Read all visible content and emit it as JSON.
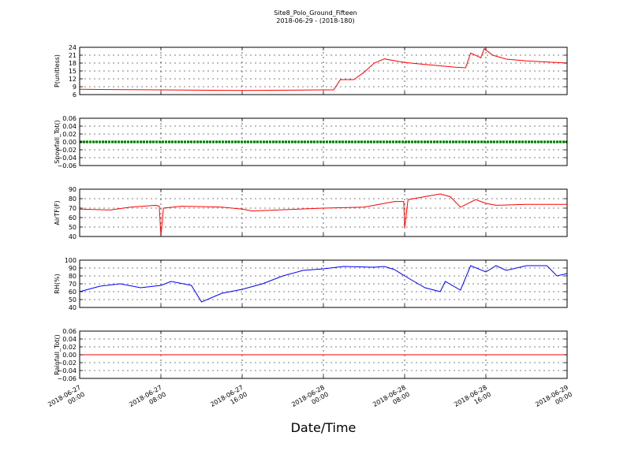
{
  "figure": {
    "title_line1": "Site8_Polo_Ground_Fifteen",
    "title_line2": "2018-06-29 - (2018-180)",
    "xlabel": "Date/Time"
  },
  "chart_data": [
    {
      "type": "line",
      "ylabel": "P(unitless)",
      "ylim": [
        6,
        24
      ],
      "yticks": [
        "24",
        "21",
        "18",
        "15",
        "12",
        "9",
        "6"
      ],
      "ytick_values": [
        24,
        21,
        18,
        15,
        12,
        9,
        6
      ],
      "xlim": [
        "2018-06-27 00:00",
        "2018-06-29 00:00"
      ],
      "xticks": [
        "2018-06-27 00:00",
        "2018-06-27 08:00",
        "2018-06-27 16:00",
        "2018-06-28 00:00",
        "2018-06-28 08:00",
        "2018-06-28 16:00",
        "2018-06-29 00:00"
      ],
      "grid": true,
      "series": [
        {
          "color": "#ff0000",
          "x": [
            "2018-06-27 00:00",
            "2018-06-27 08:00",
            "2018-06-27 16:00",
            "2018-06-28 00:00",
            "2018-06-28 01:00",
            "2018-06-28 01:40",
            "2018-06-28 03:00",
            "2018-06-28 04:00",
            "2018-06-28 05:00",
            "2018-06-28 06:00",
            "2018-06-28 08:00",
            "2018-06-28 10:00",
            "2018-06-28 13:00",
            "2018-06-28 14:00",
            "2018-06-28 14:30",
            "2018-06-28 15:30",
            "2018-06-28 15:50",
            "2018-06-28 16:40",
            "2018-06-28 18:00",
            "2018-06-28 20:00",
            "2018-06-29 00:00"
          ],
          "y": [
            8.0,
            7.8,
            7.6,
            7.8,
            7.8,
            11.7,
            11.7,
            14.5,
            18.0,
            19.6,
            18.2,
            17.5,
            16.4,
            16.2,
            21.8,
            20.0,
            23.5,
            21.0,
            19.5,
            18.8,
            18.0
          ]
        }
      ]
    },
    {
      "type": "line",
      "ylabel": "Snowfall_Tot()",
      "ylim": [
        -0.06,
        0.06
      ],
      "yticks": [
        "0.06",
        "0.04",
        "0.02",
        "0.00",
        "−0.02",
        "−0.04",
        "−0.06"
      ],
      "ytick_values": [
        0.06,
        0.04,
        0.02,
        0.0,
        -0.02,
        -0.04,
        -0.06
      ],
      "xlim": [
        "2018-06-27 00:00",
        "2018-06-29 00:00"
      ],
      "grid": true,
      "series": [
        {
          "color": "#008000",
          "x": [
            "2018-06-27 00:00",
            "2018-06-29 00:00"
          ],
          "y": [
            0.0,
            0.0
          ]
        }
      ]
    },
    {
      "type": "line",
      "ylabel": "AirTF(F)",
      "ylim": [
        40,
        90
      ],
      "yticks": [
        "90",
        "80",
        "70",
        "60",
        "50",
        "40"
      ],
      "ytick_values": [
        90,
        80,
        70,
        60,
        50,
        40
      ],
      "xlim": [
        "2018-06-27 00:00",
        "2018-06-29 00:00"
      ],
      "grid": true,
      "series": [
        {
          "color": "#ff0000",
          "x": [
            "2018-06-27 00:00",
            "2018-06-27 03:00",
            "2018-06-27 05:00",
            "2018-06-27 07:30",
            "2018-06-27 07:50",
            "2018-06-27 08:00",
            "2018-06-27 08:15",
            "2018-06-27 10:00",
            "2018-06-27 14:00",
            "2018-06-27 16:00",
            "2018-06-27 17:00",
            "2018-06-28 00:00",
            "2018-06-28 04:00",
            "2018-06-28 07:00",
            "2018-06-28 07:55",
            "2018-06-28 08:00",
            "2018-06-28 08:20",
            "2018-06-28 11:30",
            "2018-06-28 12:30",
            "2018-06-28 13:30",
            "2018-06-28 15:00",
            "2018-06-28 16:00",
            "2018-06-28 17:00",
            "2018-06-28 20:00",
            "2018-06-29 00:00"
          ],
          "y": [
            69,
            68,
            71,
            73,
            72,
            41,
            70,
            72,
            71,
            69,
            67,
            70,
            71,
            77,
            77,
            49,
            79,
            85,
            82,
            71,
            79,
            75,
            73,
            74,
            74
          ]
        }
      ]
    },
    {
      "type": "line",
      "ylabel": "RH(%)",
      "ylim": [
        40,
        100
      ],
      "yticks": [
        "100",
        "90",
        "80",
        "70",
        "60",
        "50",
        "40"
      ],
      "ytick_values": [
        100,
        90,
        80,
        70,
        60,
        50,
        40
      ],
      "xlim": [
        "2018-06-27 00:00",
        "2018-06-29 00:00"
      ],
      "grid": true,
      "series": [
        {
          "color": "#0000ff",
          "x": [
            "2018-06-27 00:00",
            "2018-06-27 02:00",
            "2018-06-27 04:00",
            "2018-06-27 06:00",
            "2018-06-27 08:00",
            "2018-06-27 09:00",
            "2018-06-27 11:00",
            "2018-06-27 12:00",
            "2018-06-27 14:00",
            "2018-06-27 16:00",
            "2018-06-27 18:00",
            "2018-06-27 20:00",
            "2018-06-27 22:00",
            "2018-06-28 00:00",
            "2018-06-28 02:00",
            "2018-06-28 05:00",
            "2018-06-28 06:00",
            "2018-06-28 07:00",
            "2018-06-28 08:00",
            "2018-06-28 10:00",
            "2018-06-28 11:30",
            "2018-06-28 12:00",
            "2018-06-28 13:30",
            "2018-06-28 14:30",
            "2018-06-28 16:00",
            "2018-06-28 17:00",
            "2018-06-28 18:00",
            "2018-06-28 20:00",
            "2018-06-28 22:00",
            "2018-06-28 23:00",
            "2018-06-29 00:00"
          ],
          "y": [
            60,
            67,
            70,
            65,
            68,
            73,
            68,
            47,
            58,
            63,
            70,
            80,
            87,
            89,
            92,
            91,
            92,
            88,
            80,
            65,
            60,
            73,
            62,
            93,
            85,
            93,
            87,
            93,
            93,
            80,
            83
          ]
        }
      ]
    },
    {
      "type": "line",
      "ylabel": "Rainfall_Tot()",
      "ylim": [
        -0.06,
        0.06
      ],
      "yticks": [
        "0.06",
        "0.04",
        "0.02",
        "0.00",
        "−0.02",
        "−0.04",
        "−0.06"
      ],
      "ytick_values": [
        0.06,
        0.04,
        0.02,
        0.0,
        -0.02,
        -0.04,
        -0.06
      ],
      "xlim": [
        "2018-06-27 00:00",
        "2018-06-29 00:00"
      ],
      "grid": true,
      "series": [
        {
          "color": "#ff0000",
          "x": [
            "2018-06-27 00:00",
            "2018-06-29 00:00"
          ],
          "y": [
            0.0,
            0.0
          ]
        }
      ]
    }
  ]
}
